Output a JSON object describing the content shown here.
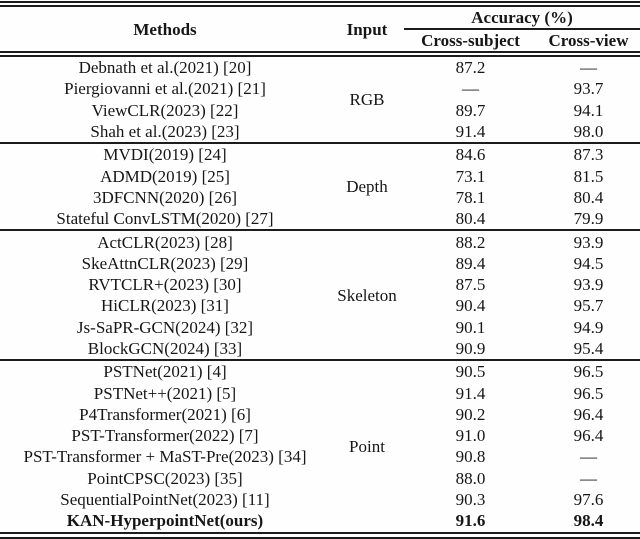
{
  "header": {
    "methods": "Methods",
    "input": "Input",
    "accuracy": "Accuracy (%)",
    "cross_subject": "Cross-subject",
    "cross_view": "Cross-view"
  },
  "groups": [
    {
      "input": "RGB",
      "rows": [
        {
          "method": "Debnath et al.(2021) [20]",
          "cross_subject": "87.2",
          "cross_view": "—"
        },
        {
          "method": "Piergiovanni et al.(2021) [21]",
          "cross_subject": "—",
          "cross_view": "93.7"
        },
        {
          "method": "ViewCLR(2023) [22]",
          "cross_subject": "89.7",
          "cross_view": "94.1"
        },
        {
          "method": "Shah et al.(2023) [23]",
          "cross_subject": "91.4",
          "cross_view": "98.0"
        }
      ]
    },
    {
      "input": "Depth",
      "rows": [
        {
          "method": "MVDI(2019) [24]",
          "cross_subject": "84.6",
          "cross_view": "87.3"
        },
        {
          "method": "ADMD(2019) [25]",
          "cross_subject": "73.1",
          "cross_view": "81.5"
        },
        {
          "method": "3DFCNN(2020) [26]",
          "cross_subject": "78.1",
          "cross_view": "80.4"
        },
        {
          "method": "Stateful ConvLSTM(2020) [27]",
          "cross_subject": "80.4",
          "cross_view": "79.9"
        }
      ]
    },
    {
      "input": "Skeleton",
      "rows": [
        {
          "method": "ActCLR(2023) [28]",
          "cross_subject": "88.2",
          "cross_view": "93.9"
        },
        {
          "method": "SkeAttnCLR(2023) [29]",
          "cross_subject": "89.4",
          "cross_view": "94.5"
        },
        {
          "method": "RVTCLR+(2023) [30]",
          "cross_subject": "87.5",
          "cross_view": "93.9"
        },
        {
          "method": "HiCLR(2023) [31]",
          "cross_subject": "90.4",
          "cross_view": "95.7"
        },
        {
          "method": "Js-SaPR-GCN(2024) [32]",
          "cross_subject": "90.1",
          "cross_view": "94.9"
        },
        {
          "method": "BlockGCN(2024) [33]",
          "cross_subject": "90.9",
          "cross_view": "95.4"
        }
      ]
    },
    {
      "input": "Point",
      "rows": [
        {
          "method": "PSTNet(2021) [4]",
          "cross_subject": "90.5",
          "cross_view": "96.5"
        },
        {
          "method": "PSTNet++(2021) [5]",
          "cross_subject": "91.4",
          "cross_view": "96.5"
        },
        {
          "method": "P4Transformer(2021) [6]",
          "cross_subject": "90.2",
          "cross_view": "96.4"
        },
        {
          "method": "PST-Transformer(2022) [7]",
          "cross_subject": "91.0",
          "cross_view": "96.4"
        },
        {
          "method": "PST-Transformer + MaST-Pre(2023) [34]",
          "cross_subject": "90.8",
          "cross_view": "—"
        },
        {
          "method": "PointCPSC(2023) [35]",
          "cross_subject": "88.0",
          "cross_view": "—"
        },
        {
          "method": "SequentialPointNet(2023) [11]",
          "cross_subject": "90.3",
          "cross_view": "97.6"
        },
        {
          "method": "KAN-HyperpointNet(ours)",
          "cross_subject": "91.6",
          "cross_view": "98.4"
        }
      ]
    }
  ],
  "colors": {
    "text": "#161616",
    "rule": "#1c1c1c",
    "background": "#fefefe"
  }
}
